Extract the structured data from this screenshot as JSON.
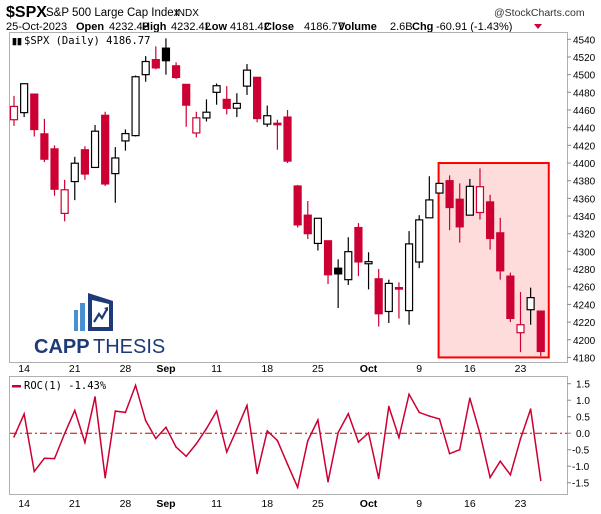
{
  "header": {
    "symbol": "$SPX",
    "name": "S&P 500 Large Cap Index",
    "exchange": "INDX",
    "watermark": "@StockCharts.com",
    "date": "25-Oct-2023",
    "open_label": "Open",
    "open": "4232.42",
    "high_label": "High",
    "high": "4232.42",
    "low_label": "Low",
    "low": "4181.42",
    "close_label": "Close",
    "close": "4186.77",
    "volume_label": "Volume",
    "volume": "2.6B",
    "chg_label": "Chg",
    "chg": "-60.91 (-1.43%)",
    "chg_direction": "down"
  },
  "logo": {
    "text_a": "CAPP",
    "text_b": "THESIS",
    "navy": "#1e3a78",
    "light": "#4a90d0"
  },
  "colors": {
    "down": "#cc0033",
    "up": "#000000",
    "highlight_fill": "#ffdcdc",
    "highlight_stroke": "#ff0000",
    "roc_line": "#cc0033"
  },
  "chart_data": [
    {
      "type": "candlestick",
      "legend": "$SPX (Daily) 4186.77",
      "ylim": [
        4175,
        4545
      ],
      "yticks": [
        4180,
        4200,
        4220,
        4240,
        4260,
        4280,
        4300,
        4320,
        4340,
        4360,
        4380,
        4400,
        4420,
        4440,
        4460,
        4480,
        4500,
        4520,
        4540
      ],
      "x_tick_labels": [
        {
          "index": 1,
          "label": "14"
        },
        {
          "index": 6,
          "label": "21"
        },
        {
          "index": 11,
          "label": "28"
        },
        {
          "index": 15,
          "label": "Sep",
          "bold": true
        },
        {
          "index": 20,
          "label": "11"
        },
        {
          "index": 25,
          "label": "18"
        },
        {
          "index": 30,
          "label": "25"
        },
        {
          "index": 35,
          "label": "Oct",
          "bold": true
        },
        {
          "index": 40,
          "label": "9"
        },
        {
          "index": 45,
          "label": "16"
        },
        {
          "index": 50,
          "label": "23"
        }
      ],
      "highlight": {
        "from_index": 43,
        "to_index": 52,
        "price_low": 4180,
        "price_high": 4400
      },
      "ohlc": [
        [
          4449,
          4476,
          4442,
          4464.05
        ],
        [
          4457,
          4490,
          4452,
          4489.72
        ],
        [
          4478,
          4478,
          4430,
          4437.86
        ],
        [
          4433,
          4450,
          4401,
          4404.33
        ],
        [
          4416,
          4420,
          4363,
          4370.36
        ],
        [
          4343,
          4381,
          4334,
          4369.71
        ],
        [
          4379,
          4407,
          4358,
          4399.77
        ],
        [
          4415,
          4419,
          4381,
          4387.55
        ],
        [
          4395,
          4443,
          4395,
          4436.01
        ],
        [
          4454,
          4458,
          4374,
          4376.31
        ],
        [
          4388,
          4418,
          4355,
          4405.71
        ],
        [
          4425,
          4438,
          4414,
          4433.31
        ],
        [
          4431,
          4499,
          4430,
          4497.63
        ],
        [
          4500,
          4521,
          4492,
          4514.87
        ],
        [
          4517,
          4532,
          4506,
          4507.66
        ],
        [
          4530,
          4541,
          4500,
          4515.77
        ],
        [
          4510,
          4514,
          4495,
          4496.83
        ],
        [
          4489,
          4489,
          4441,
          4465.48
        ],
        [
          4434,
          4458,
          4429,
          4451.14
        ],
        [
          4451,
          4472,
          4447,
          4457.49
        ],
        [
          4480,
          4490,
          4466,
          4487.46
        ],
        [
          4472,
          4487,
          4455,
          4461.9
        ],
        [
          4462,
          4479,
          4452,
          4467.44
        ],
        [
          4487,
          4512,
          4477,
          4505.1
        ],
        [
          4497,
          4497,
          4446,
          4450.32
        ],
        [
          4444,
          4465,
          4441,
          4453.53
        ],
        [
          4445,
          4449,
          4415,
          4443.95
        ],
        [
          4452,
          4460,
          4400,
          4402.2
        ],
        [
          4374,
          4375,
          4327,
          4330.0
        ],
        [
          4341,
          4357,
          4314,
          4320.06
        ],
        [
          4309,
          4338,
          4301,
          4337.44
        ],
        [
          4312,
          4312,
          4263,
          4273.53
        ],
        [
          4281,
          4291,
          4236,
          4274.51
        ],
        [
          4268,
          4316,
          4262,
          4299.7
        ],
        [
          4327,
          4332,
          4272,
          4288.05
        ],
        [
          4286,
          4299,
          4257,
          4288.39
        ],
        [
          4269,
          4280,
          4215,
          4229.45
        ],
        [
          4232,
          4268,
          4219,
          4263.75
        ],
        [
          4259,
          4265,
          4224,
          4258.19
        ],
        [
          4233,
          4323,
          4217,
          4308.5
        ],
        [
          4288,
          4341,
          4281,
          4335.66
        ],
        [
          4338,
          4385,
          4338,
          4358.24
        ],
        [
          4366,
          4377,
          4366,
          4376.95
        ],
        [
          4380,
          4386,
          4324,
          4349.61
        ],
        [
          4359,
          4377,
          4310,
          4327.78
        ],
        [
          4341,
          4382,
          4341,
          4373.63
        ],
        [
          4344,
          4394,
          4336,
          4373.2
        ],
        [
          4356,
          4364,
          4302,
          4314.6
        ],
        [
          4321,
          4338,
          4268,
          4278.0
        ],
        [
          4272,
          4276,
          4220,
          4224.16
        ],
        [
          4208,
          4254,
          4186,
          4217.04
        ],
        [
          4234,
          4259,
          4217,
          4247.68
        ],
        [
          4232.42,
          4232.42,
          4181.42,
          4186.77
        ]
      ]
    },
    {
      "type": "line",
      "legend": "ROC(1) -1.43%",
      "ylim": [
        -1.7,
        1.7
      ],
      "yticks": [
        "1.5",
        "1.0",
        "0.5",
        "0.0",
        "-0.5",
        "-1.0",
        "-1.5"
      ],
      "zero_line": true,
      "values": [
        -0.11,
        0.58,
        -1.16,
        -0.76,
        -0.77,
        -0.01,
        0.69,
        -0.28,
        1.1,
        -1.35,
        0.67,
        0.63,
        1.45,
        0.38,
        -0.16,
        0.18,
        -0.42,
        -0.7,
        -0.32,
        0.14,
        0.67,
        -0.57,
        0.12,
        0.84,
        -1.22,
        0.07,
        -0.22,
        -0.94,
        -1.64,
        -0.23,
        0.4,
        -1.47,
        0.02,
        0.59,
        -0.27,
        0.01,
        -1.37,
        0.81,
        -0.13,
        1.18,
        0.63,
        0.52,
        0.43,
        -0.62,
        -0.5,
        1.06,
        -0.01,
        -1.34,
        -0.85,
        -1.26,
        -0.17,
        0.73,
        -1.43
      ]
    }
  ]
}
